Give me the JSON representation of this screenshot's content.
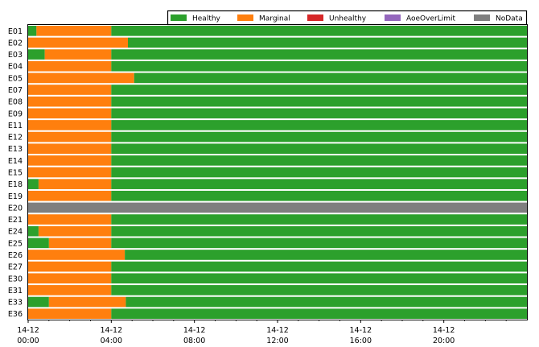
{
  "chart_data": {
    "type": "timeline",
    "title": "",
    "xlabel": "",
    "ylabel": "",
    "x_unit": "hours from 14-12 00:00",
    "x_range": [
      0,
      24
    ],
    "x_ticks": [
      {
        "value": 0,
        "date": "14-12",
        "time": "00:00"
      },
      {
        "value": 4,
        "date": "14-12",
        "time": "04:00"
      },
      {
        "value": 8,
        "date": "14-12",
        "time": "08:00"
      },
      {
        "value": 12,
        "date": "14-12",
        "time": "12:00"
      },
      {
        "value": 16,
        "date": "14-12",
        "time": "16:00"
      },
      {
        "value": 20,
        "date": "14-12",
        "time": "20:00"
      }
    ],
    "legend": {
      "placement": "top-right",
      "entries": [
        {
          "name": "Healthy",
          "color": "#2ca02c"
        },
        {
          "name": "Marginal",
          "color": "#ff7f0e"
        },
        {
          "name": "Unhealthy",
          "color": "#d62728"
        },
        {
          "name": "AoeOverLimit",
          "color": "#9467bd"
        },
        {
          "name": "NoData",
          "color": "#7f7f7f"
        }
      ]
    },
    "rows": [
      {
        "label": "E01",
        "segments": [
          {
            "status": "Healthy",
            "start": 0,
            "end": 0.4
          },
          {
            "status": "Marginal",
            "start": 0.4,
            "end": 4
          },
          {
            "status": "Healthy",
            "start": 4,
            "end": 24
          }
        ]
      },
      {
        "label": "E02",
        "segments": [
          {
            "status": "Marginal",
            "start": 0,
            "end": 4.8
          },
          {
            "status": "Healthy",
            "start": 4.8,
            "end": 24
          }
        ]
      },
      {
        "label": "E03",
        "segments": [
          {
            "status": "Healthy",
            "start": 0,
            "end": 0.8
          },
          {
            "status": "Marginal",
            "start": 0.8,
            "end": 4
          },
          {
            "status": "Healthy",
            "start": 4,
            "end": 24
          }
        ]
      },
      {
        "label": "E04",
        "segments": [
          {
            "status": "Marginal",
            "start": 0,
            "end": 4
          },
          {
            "status": "Healthy",
            "start": 4,
            "end": 24
          }
        ]
      },
      {
        "label": "E05",
        "segments": [
          {
            "status": "Marginal",
            "start": 0,
            "end": 5.1
          },
          {
            "status": "Healthy",
            "start": 5.1,
            "end": 24
          }
        ]
      },
      {
        "label": "E07",
        "segments": [
          {
            "status": "Marginal",
            "start": 0,
            "end": 4
          },
          {
            "status": "Healthy",
            "start": 4,
            "end": 24
          }
        ]
      },
      {
        "label": "E08",
        "segments": [
          {
            "status": "Marginal",
            "start": 0,
            "end": 4
          },
          {
            "status": "Healthy",
            "start": 4,
            "end": 24
          }
        ]
      },
      {
        "label": "E09",
        "segments": [
          {
            "status": "Marginal",
            "start": 0,
            "end": 4
          },
          {
            "status": "Healthy",
            "start": 4,
            "end": 24
          }
        ]
      },
      {
        "label": "E11",
        "segments": [
          {
            "status": "Marginal",
            "start": 0,
            "end": 4
          },
          {
            "status": "Healthy",
            "start": 4,
            "end": 24
          }
        ]
      },
      {
        "label": "E12",
        "segments": [
          {
            "status": "Marginal",
            "start": 0,
            "end": 4
          },
          {
            "status": "Healthy",
            "start": 4,
            "end": 24
          }
        ]
      },
      {
        "label": "E13",
        "segments": [
          {
            "status": "Marginal",
            "start": 0,
            "end": 4
          },
          {
            "status": "Healthy",
            "start": 4,
            "end": 24
          }
        ]
      },
      {
        "label": "E14",
        "segments": [
          {
            "status": "Marginal",
            "start": 0,
            "end": 4
          },
          {
            "status": "Healthy",
            "start": 4,
            "end": 24
          }
        ]
      },
      {
        "label": "E15",
        "segments": [
          {
            "status": "Marginal",
            "start": 0,
            "end": 4
          },
          {
            "status": "Healthy",
            "start": 4,
            "end": 24
          }
        ]
      },
      {
        "label": "E18",
        "segments": [
          {
            "status": "Healthy",
            "start": 0,
            "end": 0.5
          },
          {
            "status": "Marginal",
            "start": 0.5,
            "end": 4
          },
          {
            "status": "Healthy",
            "start": 4,
            "end": 24
          }
        ]
      },
      {
        "label": "E19",
        "segments": [
          {
            "status": "Marginal",
            "start": 0,
            "end": 4
          },
          {
            "status": "Healthy",
            "start": 4,
            "end": 24
          }
        ]
      },
      {
        "label": "E20",
        "segments": [
          {
            "status": "NoData",
            "start": 0,
            "end": 24
          }
        ]
      },
      {
        "label": "E21",
        "segments": [
          {
            "status": "Marginal",
            "start": 0,
            "end": 4
          },
          {
            "status": "Healthy",
            "start": 4,
            "end": 24
          }
        ]
      },
      {
        "label": "E24",
        "segments": [
          {
            "status": "Healthy",
            "start": 0,
            "end": 0.5
          },
          {
            "status": "Marginal",
            "start": 0.5,
            "end": 4
          },
          {
            "status": "Healthy",
            "start": 4,
            "end": 24
          }
        ]
      },
      {
        "label": "E25",
        "segments": [
          {
            "status": "Healthy",
            "start": 0,
            "end": 1
          },
          {
            "status": "Marginal",
            "start": 1,
            "end": 4
          },
          {
            "status": "Healthy",
            "start": 4,
            "end": 24
          }
        ]
      },
      {
        "label": "E26",
        "segments": [
          {
            "status": "Marginal",
            "start": 0,
            "end": 4.65
          },
          {
            "status": "Healthy",
            "start": 4.65,
            "end": 24
          }
        ]
      },
      {
        "label": "E27",
        "segments": [
          {
            "status": "Marginal",
            "start": 0,
            "end": 4
          },
          {
            "status": "Healthy",
            "start": 4,
            "end": 24
          }
        ]
      },
      {
        "label": "E30",
        "segments": [
          {
            "status": "Marginal",
            "start": 0,
            "end": 4
          },
          {
            "status": "Healthy",
            "start": 4,
            "end": 24
          }
        ]
      },
      {
        "label": "E31",
        "segments": [
          {
            "status": "Marginal",
            "start": 0,
            "end": 4
          },
          {
            "status": "Healthy",
            "start": 4,
            "end": 24
          }
        ]
      },
      {
        "label": "E33",
        "segments": [
          {
            "status": "Healthy",
            "start": 0,
            "end": 1
          },
          {
            "status": "Marginal",
            "start": 1,
            "end": 4.7
          },
          {
            "status": "Healthy",
            "start": 4.7,
            "end": 24
          }
        ]
      },
      {
        "label": "E36",
        "segments": [
          {
            "status": "Marginal",
            "start": 0,
            "end": 4
          },
          {
            "status": "Healthy",
            "start": 4,
            "end": 24
          }
        ]
      }
    ]
  }
}
